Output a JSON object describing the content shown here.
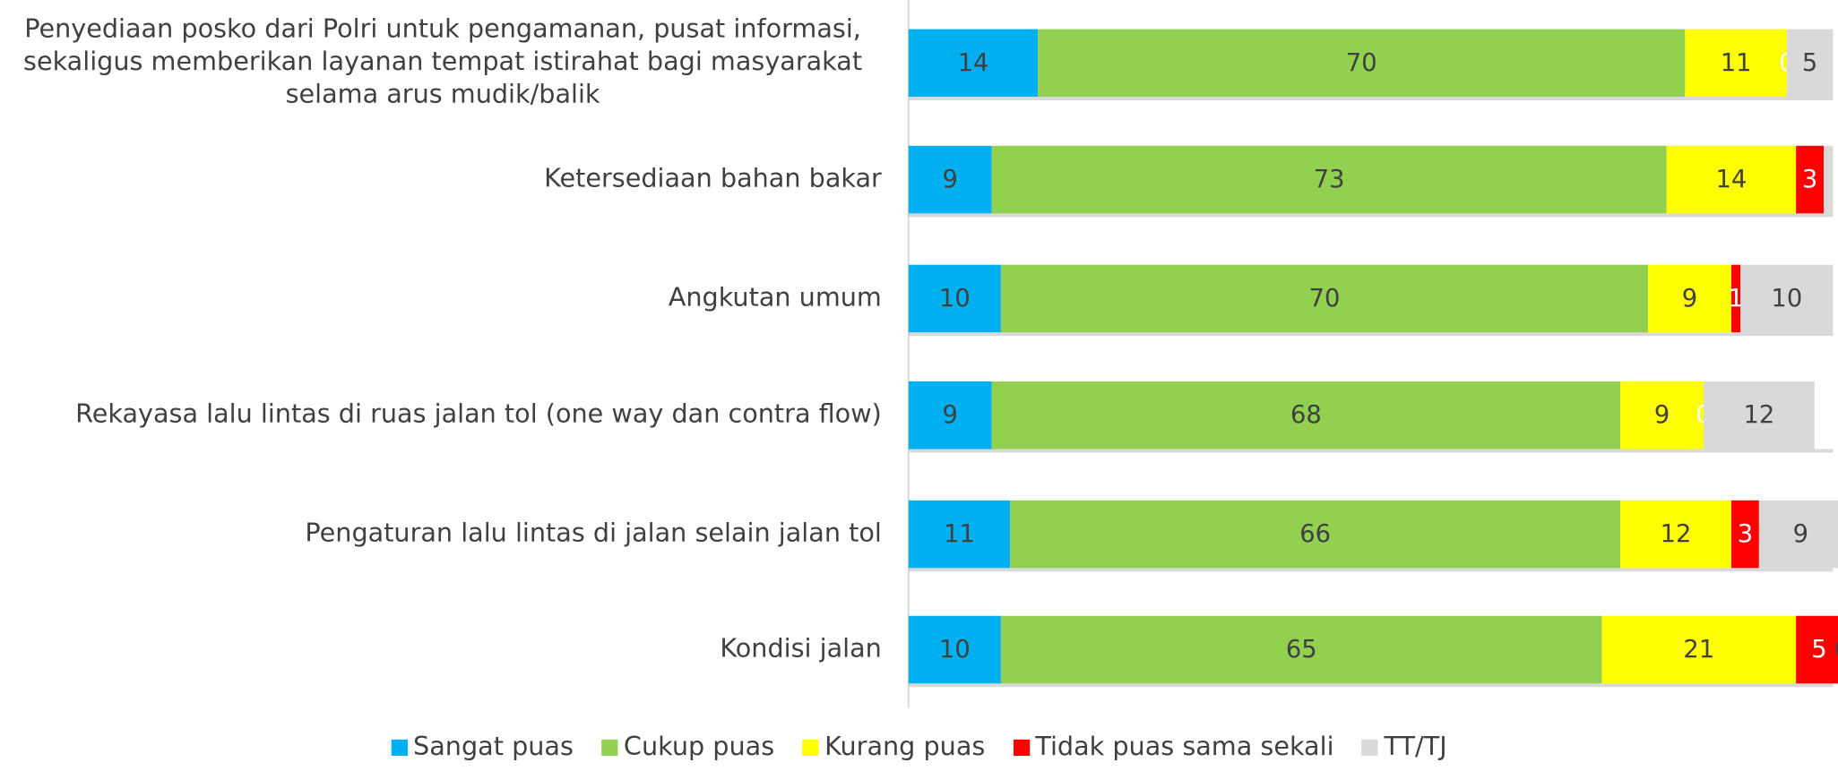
{
  "chart_data": {
    "type": "stacked_barh",
    "categories": [
      "Penyediaan posko dari Polri untuk pengamanan, pusat informasi, sekaligus memberikan layanan tempat istirahat bagi masyarakat selama arus mudik/balik",
      "Ketersediaan bahan bakar",
      "Angkutan umum",
      "Rekayasa lalu lintas di ruas jalan tol (one way dan contra flow)",
      "Pengaturan lalu lintas di jalan selain jalan tol",
      "Kondisi jalan"
    ],
    "series": [
      {
        "name": "Sangat puas",
        "color": "#00b0f0",
        "label_color": "#404040",
        "values": [
          14,
          9,
          10,
          9,
          11,
          10
        ]
      },
      {
        "name": "Cukup puas",
        "color": "#92d050",
        "label_color": "#404040",
        "values": [
          70,
          73,
          70,
          68,
          66,
          65
        ]
      },
      {
        "name": "Kurang puas",
        "color": "#ffff00",
        "label_color": "#404040",
        "values": [
          11,
          14,
          9,
          9,
          12,
          21
        ]
      },
      {
        "name": "Tidak puas sama sekali",
        "color": "#ff0000",
        "label_color": "#ffffff",
        "values": [
          0,
          3,
          1,
          0,
          3,
          5
        ]
      },
      {
        "name": "TT/TJ",
        "color": "#d9d9d9",
        "label_color": "#404040",
        "values": [
          5,
          1,
          10,
          12,
          9,
          0
        ],
        "value_labels": [
          "5",
          null,
          "10",
          "12",
          "9",
          "0"
        ]
      }
    ],
    "xlim": [
      0,
      100
    ]
  }
}
